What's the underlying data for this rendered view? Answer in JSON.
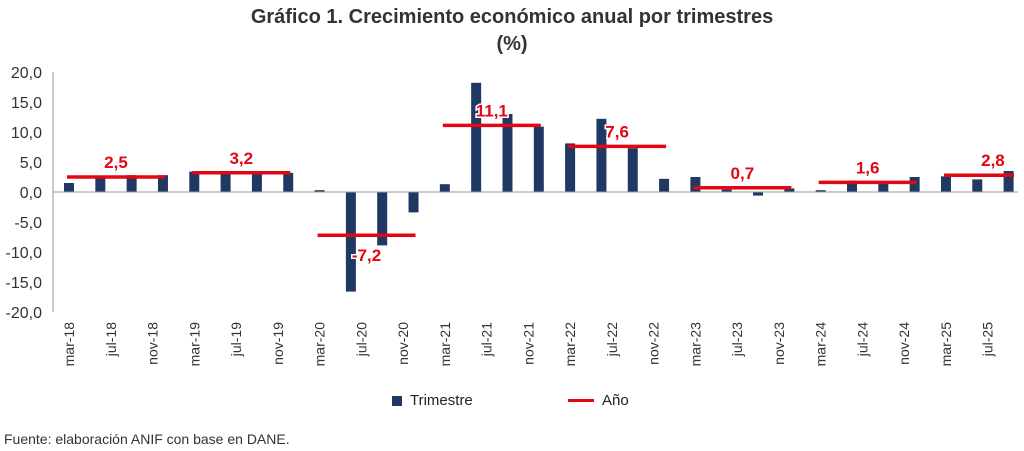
{
  "chart_data": {
    "type": "bar",
    "title": "Gráfico 1. Crecimiento económico anual por trimestres",
    "subtitle": "(%)",
    "xlabel": "",
    "ylabel": "",
    "ylim": [
      -20,
      20
    ],
    "yticks": [
      "20,0",
      "15,0",
      "10,0",
      "5,0",
      "0,0",
      "-5,0",
      "-10,0",
      "-15,0",
      "-20,0"
    ],
    "ytick_values": [
      20,
      15,
      10,
      5,
      0,
      -5,
      -10,
      -15,
      -20
    ],
    "xtick_labels": [
      "mar-18",
      "jul-18",
      "nov-18",
      "mar-19",
      "jul-19",
      "nov-19",
      "mar-20",
      "jul-20",
      "nov-20",
      "mar-21",
      "jul-21",
      "nov-21",
      "mar-22",
      "jul-22",
      "nov-22",
      "mar-23",
      "jul-23",
      "nov-23",
      "mar-24",
      "jul-24",
      "nov-24",
      "mar-25",
      "jul-25"
    ],
    "series": [
      {
        "name": "Trimestre",
        "color": "#1f3864",
        "type": "bar",
        "values": [
          1.5,
          2.6,
          2.8,
          2.8,
          3.4,
          3.1,
          3.2,
          3.2,
          0.3,
          -16.6,
          -8.9,
          -3.4,
          1.3,
          18.2,
          13.0,
          10.9,
          8.1,
          12.2,
          7.3,
          2.2,
          2.5,
          0.4,
          -0.6,
          0.6,
          0.3,
          1.9,
          1.8,
          2.5,
          2.6,
          2.1,
          3.5
        ]
      },
      {
        "name": "Año",
        "color": "#e30613",
        "type": "line-segment",
        "years": [
          2018,
          2019,
          2020,
          2021,
          2022,
          2023,
          2024,
          2025
        ],
        "values": [
          2.5,
          3.2,
          -7.2,
          11.1,
          7.6,
          0.7,
          1.6,
          2.8
        ],
        "labels": [
          "2,5",
          "3,2",
          "-7,2",
          "11,1",
          "7,6",
          "0,7",
          "1,6",
          "2,8"
        ]
      }
    ],
    "legend": "bottom",
    "grid": false
  },
  "source": "Fuente: elaboración ANIF con base en DANE."
}
